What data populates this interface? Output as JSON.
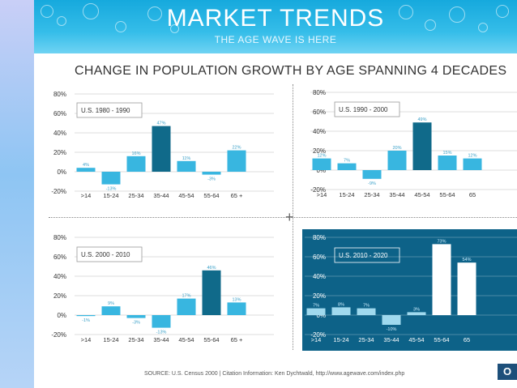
{
  "banner": {
    "title": "MARKET TRENDS",
    "subtitle": "THE AGE WAVE IS HERE"
  },
  "main_title": "CHANGE IN POPULATION GROWTH BY AGE SPANNING 4 DECADES",
  "source": "SOURCE: U.S. Census 2000 | Citation Information: Ken Dychtwald, http://www.agewave.com/index.php",
  "badge": "O",
  "colors": {
    "bar": "#38b6e0",
    "highlight": "#106a8a",
    "dark_panel": "#0d6288",
    "white_bar": "#ffffff"
  },
  "chart_data": [
    {
      "type": "bar",
      "label": "U.S. 1980 - 1990",
      "categories": [
        ">14",
        "15-24",
        "25-34",
        "35-44",
        "45-54",
        "55-64",
        "65 +"
      ],
      "values": [
        4,
        -13,
        16,
        47,
        11,
        -3,
        22
      ],
      "value_labels": [
        "4%",
        "-13%",
        "16%",
        "47%",
        "11%",
        "-3%",
        "22%"
      ],
      "highlight_index": 3,
      "yticks": [
        "80%",
        "60%",
        "40%",
        "20%",
        "0%",
        "-20%"
      ],
      "ylim": [
        -20,
        80
      ]
    },
    {
      "type": "bar",
      "label": "U.S. 1990 - 2000",
      "categories": [
        ">14",
        "15-24",
        "25-34",
        "35-44",
        "45-54",
        "55-64",
        "65"
      ],
      "values": [
        12,
        7,
        -9,
        20,
        49,
        15,
        12
      ],
      "value_labels": [
        "12%",
        "7%",
        "-9%",
        "20%",
        "49%",
        "15%",
        "12%"
      ],
      "highlight_index": 4,
      "yticks": [
        "80%",
        "60%",
        "40%",
        "20%",
        "0%",
        "-20%"
      ],
      "ylim": [
        -20,
        80
      ]
    },
    {
      "type": "bar",
      "label": "U.S. 2000 - 2010",
      "categories": [
        ">14",
        "15-24",
        "25-34",
        "35-44",
        "45-54",
        "55-64",
        "65 +"
      ],
      "values": [
        -1,
        9,
        -3,
        -13,
        17,
        46,
        13
      ],
      "value_labels": [
        "-1%",
        "9%",
        "-3%",
        "-13%",
        "17%",
        "46%",
        "13%"
      ],
      "highlight_index": 5,
      "yticks": [
        "80%",
        "60%",
        "40%",
        "20%",
        "0%",
        "-20%"
      ],
      "ylim": [
        -20,
        80
      ]
    },
    {
      "type": "bar",
      "label": "U.S. 2010 - 2020",
      "categories": [
        ">14",
        "15-24",
        "25-34",
        "35-44",
        "45-54",
        "55-64",
        "65"
      ],
      "values": [
        7,
        8,
        7,
        -10,
        3,
        73,
        54
      ],
      "value_labels": [
        "7%",
        "8%",
        "7%",
        "-10%",
        "3%",
        "73%",
        "54%"
      ],
      "highlight_index": 5,
      "yticks": [
        "80%",
        "60%",
        "40%",
        "20%",
        "0%",
        "-20%"
      ],
      "ylim": [
        -20,
        80
      ],
      "dark": true
    }
  ]
}
